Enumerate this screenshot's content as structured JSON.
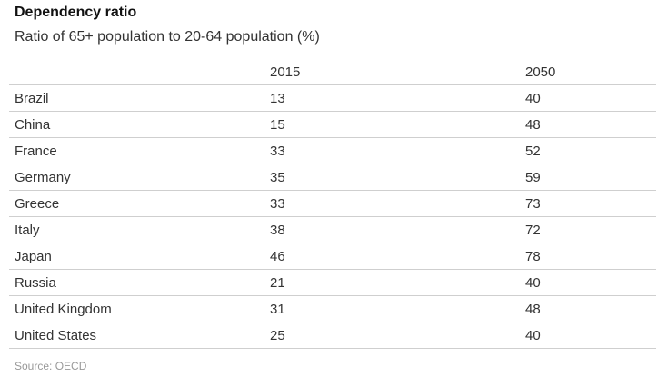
{
  "chart_data": {
    "type": "table",
    "title": "Dependency ratio",
    "subtitle": "Ratio of 65+ population to 20-64 population (%)",
    "columns": [
      "",
      "2015",
      "2050"
    ],
    "rows": [
      [
        "Brazil",
        "13",
        "40"
      ],
      [
        "China",
        "15",
        "48"
      ],
      [
        "France",
        "33",
        "52"
      ],
      [
        "Germany",
        "35",
        "59"
      ],
      [
        "Greece",
        "33",
        "73"
      ],
      [
        "Italy",
        "38",
        "72"
      ],
      [
        "Japan",
        "46",
        "78"
      ],
      [
        "Russia",
        "21",
        "40"
      ],
      [
        "United Kingdom",
        "31",
        "48"
      ],
      [
        "United States",
        "25",
        "40"
      ]
    ],
    "source": "Source: OECD"
  }
}
